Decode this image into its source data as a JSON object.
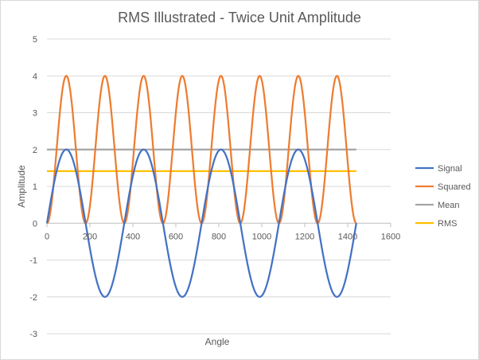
{
  "chart_data": {
    "type": "line",
    "title": "RMS Illustrated - Twice Unit Amplitude",
    "xlabel": "Angle",
    "ylabel": "Amplitude",
    "xlim": [
      0,
      1600
    ],
    "ylim": [
      -3,
      5
    ],
    "x_ticks": [
      "0",
      "200",
      "400",
      "600",
      "800",
      "1000",
      "1200",
      "1400",
      "1600"
    ],
    "y_ticks": [
      "5",
      "4",
      "3",
      "2",
      "1",
      "0",
      "-1",
      "-2",
      "-3"
    ],
    "grid": "horizontal",
    "legend_position": "right",
    "x_range": [
      0,
      1440
    ],
    "series": [
      {
        "name": "Signal",
        "color": "#4472C4",
        "x": [
          0,
          45,
          90,
          135,
          180,
          225,
          270,
          315,
          360,
          405,
          450,
          495,
          540,
          585,
          630,
          675,
          720,
          765,
          810,
          855,
          900,
          945,
          990,
          1035,
          1080,
          1125,
          1170,
          1215,
          1260,
          1305,
          1350,
          1395,
          1440
        ],
        "values": [
          0,
          1.414,
          2,
          1.414,
          0,
          -1.414,
          -2,
          -1.414,
          0,
          1.414,
          2,
          1.414,
          0,
          -1.414,
          -2,
          -1.414,
          0,
          1.414,
          2,
          1.414,
          0,
          -1.414,
          -2,
          -1.414,
          0,
          1.414,
          2,
          1.414,
          0,
          -1.414,
          -2,
          -1.414,
          0
        ]
      },
      {
        "name": "Squared",
        "color": "#ED7D31",
        "x": [
          0,
          45,
          90,
          135,
          180,
          225,
          270,
          315,
          360,
          405,
          450,
          495,
          540,
          585,
          630,
          675,
          720,
          765,
          810,
          855,
          900,
          945,
          990,
          1035,
          1080,
          1125,
          1170,
          1215,
          1260,
          1305,
          1350,
          1395,
          1440
        ],
        "values": [
          0,
          2,
          4,
          2,
          0,
          2,
          4,
          2,
          0,
          2,
          4,
          2,
          0,
          2,
          4,
          2,
          0,
          2,
          4,
          2,
          0,
          2,
          4,
          2,
          0,
          2,
          4,
          2,
          0,
          2,
          4,
          2,
          0
        ]
      },
      {
        "name": "Mean",
        "color": "#A5A5A5",
        "x": [
          0,
          1440
        ],
        "values": [
          2,
          2
        ]
      },
      {
        "name": "RMS",
        "color": "#FFC000",
        "x": [
          0,
          1440
        ],
        "values": [
          1.414,
          1.414
        ]
      }
    ]
  }
}
